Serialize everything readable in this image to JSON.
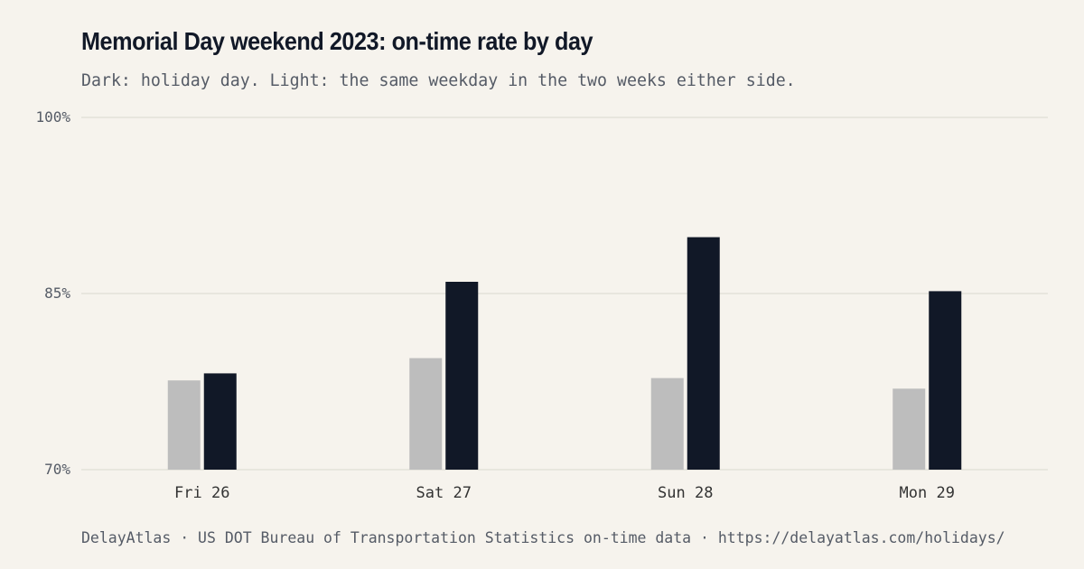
{
  "header": {
    "title": "Memorial Day weekend 2023: on-time rate by day",
    "subtitle": "Dark: holiday day. Light: the same weekday in the two weeks either side."
  },
  "footer": {
    "text": "DelayAtlas · US DOT Bureau of Transportation Statistics on-time data · https://delayatlas.com/holidays/"
  },
  "colors": {
    "holiday": "#111827",
    "baseline": "#bdbdbd",
    "gridline": "#e4e1da",
    "axis_text": "#555b66",
    "background": "#f6f3ed"
  },
  "chart_data": {
    "type": "bar",
    "title": "Memorial Day weekend 2023: on-time rate by day",
    "subtitle": "Dark: holiday day. Light: the same weekday in the two weeks either side.",
    "categories": [
      "Fri 26",
      "Sat 27",
      "Sun 28",
      "Mon 29"
    ],
    "series": [
      {
        "key": "baseline",
        "values": [
          77.6,
          79.5,
          77.8,
          76.9
        ]
      },
      {
        "key": "holiday",
        "values": [
          78.2,
          86.0,
          89.8,
          85.2
        ]
      }
    ],
    "ylim": [
      70,
      100
    ],
    "yticks": [
      70,
      85,
      100
    ],
    "ytick_labels": [
      "70%",
      "85%",
      "100%"
    ],
    "grid": true,
    "legend": "none"
  }
}
